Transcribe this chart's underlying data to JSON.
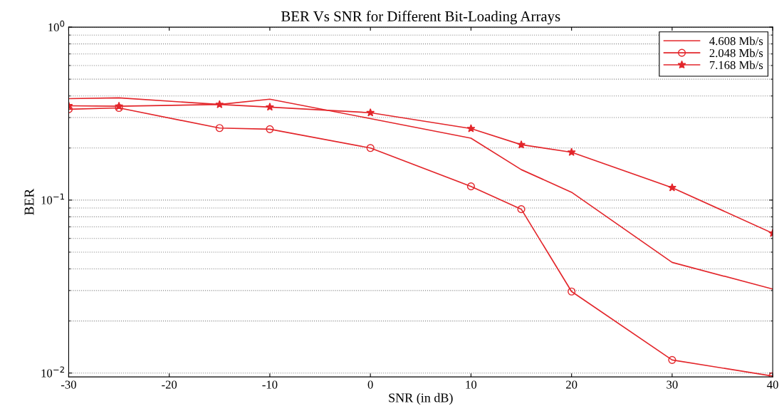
{
  "chart_data": {
    "type": "line",
    "title": "BER Vs SNR for Different Bit-Loading Arrays",
    "xlabel": "SNR (in dB)",
    "ylabel": "BER",
    "log": "y",
    "xlim": [
      -30,
      40
    ],
    "xticks": [
      -30,
      -20,
      -10,
      0,
      10,
      20,
      30,
      40
    ],
    "ylim": [
      0.0095,
      1
    ],
    "yticks": [
      {
        "value": 1,
        "label": "10$^{0}$"
      },
      {
        "value": 0.1,
        "label": "10$^{−1}$"
      },
      {
        "value": 0.01,
        "label": "10$^{−2}$"
      }
    ],
    "grid": "y",
    "legend": "top right",
    "line_style": "solid",
    "series": [
      {
        "name": "4.608 Mb/s",
        "color": "#e3262b",
        "marker": "none",
        "x": [
          -30,
          -25,
          -15,
          -10,
          0,
          10,
          15,
          20,
          30,
          40
        ],
        "values": [
          0.386,
          0.39,
          0.357,
          0.383,
          0.296,
          0.228,
          0.15,
          0.111,
          0.0436,
          0.0306
        ]
      },
      {
        "name": "2.048 Mb/s",
        "color": "#e3262b",
        "marker": "circle",
        "x": [
          -30,
          -25,
          -15,
          -10,
          0,
          10,
          15,
          20,
          30,
          40
        ],
        "values": [
          0.335,
          0.341,
          0.261,
          0.257,
          0.2,
          0.12,
          0.0886,
          0.0296,
          0.0119,
          0.0096
        ]
      },
      {
        "name": "7.168 Mb/s",
        "color": "#e3262b",
        "marker": "star",
        "x": [
          -30,
          -25,
          -15,
          -10,
          0,
          10,
          15,
          20,
          30,
          40
        ],
        "values": [
          0.351,
          0.349,
          0.357,
          0.345,
          0.32,
          0.259,
          0.209,
          0.189,
          0.118,
          0.0643
        ]
      }
    ]
  }
}
